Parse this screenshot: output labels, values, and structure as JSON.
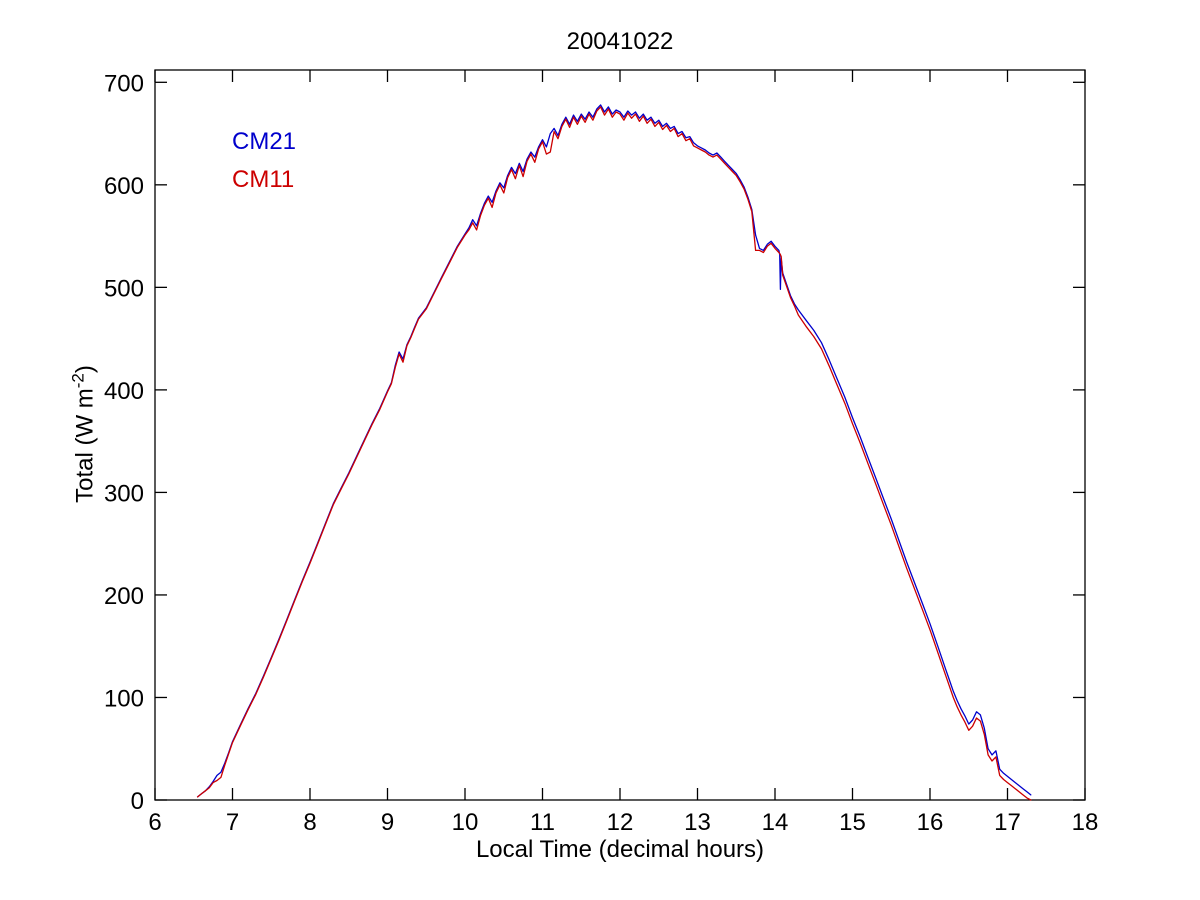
{
  "title": "20041022",
  "legend": {
    "cm21": {
      "label": "CM21",
      "color": "#0000CC"
    },
    "cm11": {
      "label": "CM11",
      "color": "#CC0000"
    }
  },
  "axes": {
    "xlabel": "Local Time (decimal hours)",
    "ylabel_prefix": "Total (W m",
    "ylabel_sup": "-2",
    "ylabel_suffix": ")"
  },
  "chart_data": {
    "type": "line",
    "title": "20041022",
    "xlabel": "Local Time (decimal hours)",
    "ylabel": "Total (W m^-2)",
    "grid": false,
    "legend_position": "top-left-text",
    "xlim": [
      6,
      18
    ],
    "ylim": [
      0,
      712
    ],
    "xticks": [
      6,
      7,
      8,
      9,
      10,
      11,
      12,
      13,
      14,
      15,
      16,
      17,
      18
    ],
    "yticks": [
      0,
      100,
      200,
      300,
      400,
      500,
      600,
      700
    ],
    "x": [
      6.55,
      6.6,
      6.65,
      6.7,
      6.75,
      6.8,
      6.85,
      6.9,
      6.95,
      7,
      7.1,
      7.2,
      7.3,
      7.4,
      7.5,
      7.6,
      7.7,
      7.8,
      7.9,
      8,
      8.1,
      8.2,
      8.3,
      8.4,
      8.5,
      8.6,
      8.7,
      8.8,
      8.9,
      9,
      9.05,
      9.1,
      9.15,
      9.2,
      9.25,
      9.3,
      9.35,
      9.4,
      9.5,
      9.6,
      9.7,
      9.8,
      9.9,
      10,
      10.05,
      10.1,
      10.15,
      10.2,
      10.25,
      10.3,
      10.35,
      10.4,
      10.45,
      10.5,
      10.55,
      10.6,
      10.65,
      10.7,
      10.75,
      10.8,
      10.85,
      10.9,
      10.95,
      11,
      11.05,
      11.1,
      11.15,
      11.2,
      11.25,
      11.3,
      11.35,
      11.4,
      11.45,
      11.5,
      11.55,
      11.6,
      11.65,
      11.7,
      11.75,
      11.8,
      11.85,
      11.9,
      11.95,
      12,
      12.05,
      12.1,
      12.15,
      12.2,
      12.25,
      12.3,
      12.35,
      12.4,
      12.45,
      12.5,
      12.55,
      12.6,
      12.65,
      12.7,
      12.75,
      12.8,
      12.85,
      12.9,
      12.95,
      13,
      13.05,
      13.1,
      13.15,
      13.2,
      13.25,
      13.3,
      13.35,
      13.4,
      13.45,
      13.5,
      13.55,
      13.6,
      13.65,
      13.7,
      13.75,
      13.8,
      13.85,
      13.9,
      13.95,
      14,
      14.05,
      14.06,
      14.07,
      14.08,
      14.1,
      14.15,
      14.2,
      14.25,
      14.3,
      14.4,
      14.5,
      14.6,
      14.7,
      14.8,
      14.9,
      15,
      15.1,
      15.2,
      15.3,
      15.4,
      15.5,
      15.6,
      15.7,
      15.8,
      15.9,
      16,
      16.1,
      16.2,
      16.25,
      16.3,
      16.35,
      16.4,
      16.45,
      16.5,
      16.55,
      16.6,
      16.65,
      16.7,
      16.75,
      16.8,
      16.85,
      16.9,
      16.95,
      17,
      17.05,
      17.1,
      17.15,
      17.2,
      17.25,
      17.3
    ],
    "series": [
      {
        "name": "CM21",
        "color": "#0000CC",
        "values": [
          3,
          6,
          9,
          13,
          18,
          24,
          27,
          36,
          46,
          57,
          73,
          89,
          104,
          121,
          139,
          157,
          176,
          195,
          214,
          232,
          251,
          270,
          289,
          304,
          319,
          335,
          351,
          367,
          382,
          399,
          407,
          424,
          437,
          430,
          444,
          452,
          461,
          470,
          480,
          495,
          510,
          525,
          540,
          552,
          558,
          566,
          560,
          572,
          582,
          589,
          583,
          594,
          602,
          597,
          609,
          617,
          611,
          621,
          613,
          625,
          632,
          627,
          637,
          644,
          637,
          650,
          655,
          648,
          659,
          666,
          659,
          668,
          662,
          669,
          664,
          671,
          666,
          674,
          678,
          671,
          676,
          669,
          673,
          671,
          666,
          672,
          668,
          671,
          665,
          669,
          663,
          666,
          660,
          663,
          657,
          660,
          655,
          657,
          650,
          652,
          646,
          647,
          641,
          638,
          636,
          634,
          631,
          629,
          631,
          627,
          623,
          619,
          615,
          611,
          605,
          598,
          588,
          576,
          551,
          538,
          536,
          542,
          545,
          540,
          536,
          532,
          498,
          528,
          514,
          503,
          492,
          484,
          478,
          468,
          458,
          446,
          429,
          411,
          393,
          373,
          354,
          334,
          314,
          294,
          274,
          253,
          232,
          212,
          192,
          172,
          150,
          128,
          117,
          106,
          97,
          89,
          82,
          74,
          78,
          86,
          83,
          70,
          50,
          44,
          48,
          30,
          26,
          23,
          20,
          17,
          14,
          11,
          8,
          5
        ]
      },
      {
        "name": "CM11",
        "color": "#CC0000",
        "values": [
          3,
          6,
          9,
          12,
          17,
          19,
          22,
          34,
          45,
          56,
          72,
          88,
          103,
          120,
          138,
          156,
          175,
          194,
          213,
          231,
          250,
          269,
          288,
          303,
          318,
          334,
          350,
          366,
          381,
          398,
          406,
          422,
          435,
          427,
          443,
          451,
          460,
          469,
          479,
          494,
          509,
          524,
          539,
          551,
          556,
          563,
          556,
          570,
          580,
          587,
          578,
          592,
          600,
          592,
          607,
          615,
          606,
          619,
          608,
          623,
          630,
          622,
          635,
          642,
          630,
          632,
          652,
          645,
          657,
          664,
          656,
          666,
          659,
          667,
          661,
          669,
          663,
          672,
          676,
          668,
          674,
          666,
          671,
          669,
          663,
          670,
          665,
          669,
          662,
          667,
          660,
          664,
          657,
          661,
          654,
          658,
          652,
          655,
          647,
          650,
          643,
          645,
          638,
          636,
          634,
          632,
          629,
          627,
          629,
          625,
          621,
          617,
          613,
          609,
          603,
          596,
          586,
          574,
          536,
          536,
          534,
          540,
          543,
          538,
          534,
          533,
          532,
          530,
          512,
          501,
          490,
          482,
          473,
          462,
          452,
          440,
          423,
          405,
          387,
          367,
          348,
          328,
          308,
          288,
          268,
          247,
          226,
          206,
          186,
          166,
          144,
          122,
          111,
          100,
          91,
          83,
          76,
          68,
          72,
          80,
          77,
          64,
          44,
          38,
          42,
          24,
          20,
          17,
          14,
          11,
          8,
          5,
          2,
          0
        ]
      }
    ]
  }
}
